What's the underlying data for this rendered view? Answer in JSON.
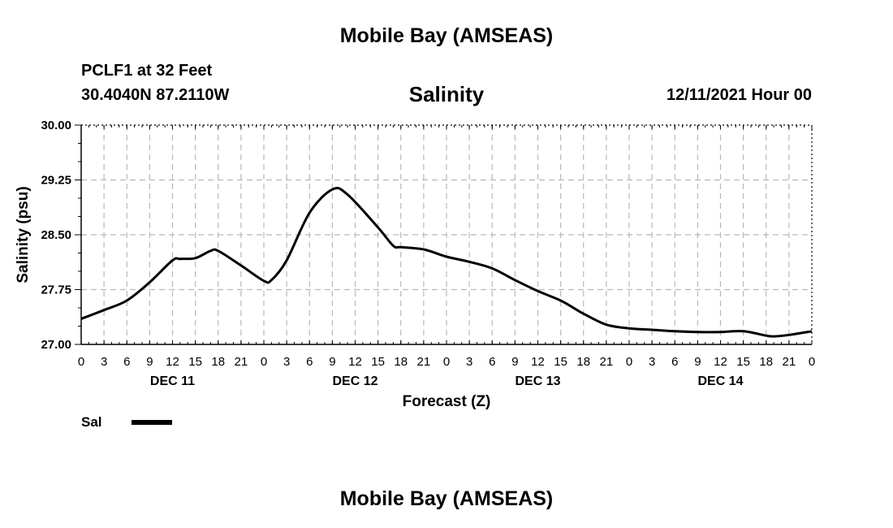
{
  "header": {
    "title": "Mobile Bay (AMSEAS)",
    "station": "PCLF1 at 32 Feet",
    "coords": "30.4040N  87.2110W",
    "variable": "Salinity",
    "datetime": "12/11/2021 Hour 00"
  },
  "footer": {
    "title": "Mobile Bay (AMSEAS)"
  },
  "chart_data": {
    "type": "line",
    "title": "Salinity",
    "xlabel": "Forecast (Z)",
    "ylabel": "Salinity (psu)",
    "ylim": [
      27.0,
      30.0
    ],
    "yticks": [
      "27.00",
      "27.75",
      "28.50",
      "29.25",
      "30.00"
    ],
    "xlim": [
      0,
      96
    ],
    "xticks": [
      "0",
      "3",
      "6",
      "9",
      "12",
      "15",
      "18",
      "21",
      "0",
      "3",
      "6",
      "9",
      "12",
      "15",
      "18",
      "21",
      "0",
      "3",
      "6",
      "9",
      "12",
      "15",
      "18",
      "21",
      "0",
      "3",
      "6",
      "9",
      "12",
      "15",
      "18",
      "21",
      "0"
    ],
    "day_labels": [
      "DEC 11",
      "DEC 12",
      "DEC 13",
      "DEC 14"
    ],
    "grid": true,
    "legend_position": "bottom-left",
    "series": [
      {
        "name": "Sal",
        "color": "#000000",
        "x": [
          0,
          3,
          6,
          9,
          12,
          13,
          15,
          17,
          18,
          21,
          24,
          25,
          27,
          30,
          33,
          35,
          39,
          41,
          42,
          45,
          48,
          51,
          54,
          57,
          60,
          63,
          65,
          66,
          69,
          72,
          75,
          78,
          81,
          84,
          87,
          90,
          91,
          93,
          96
        ],
        "y": [
          27.35,
          27.47,
          27.6,
          27.85,
          28.15,
          28.17,
          28.18,
          28.28,
          28.28,
          28.08,
          27.87,
          27.88,
          28.15,
          28.8,
          29.12,
          29.05,
          28.6,
          28.35,
          28.33,
          28.3,
          28.2,
          28.13,
          28.04,
          27.88,
          27.73,
          27.6,
          27.48,
          27.42,
          27.27,
          27.22,
          27.2,
          27.18,
          27.17,
          27.17,
          27.18,
          27.12,
          27.11,
          27.13,
          27.18
        ]
      }
    ]
  }
}
